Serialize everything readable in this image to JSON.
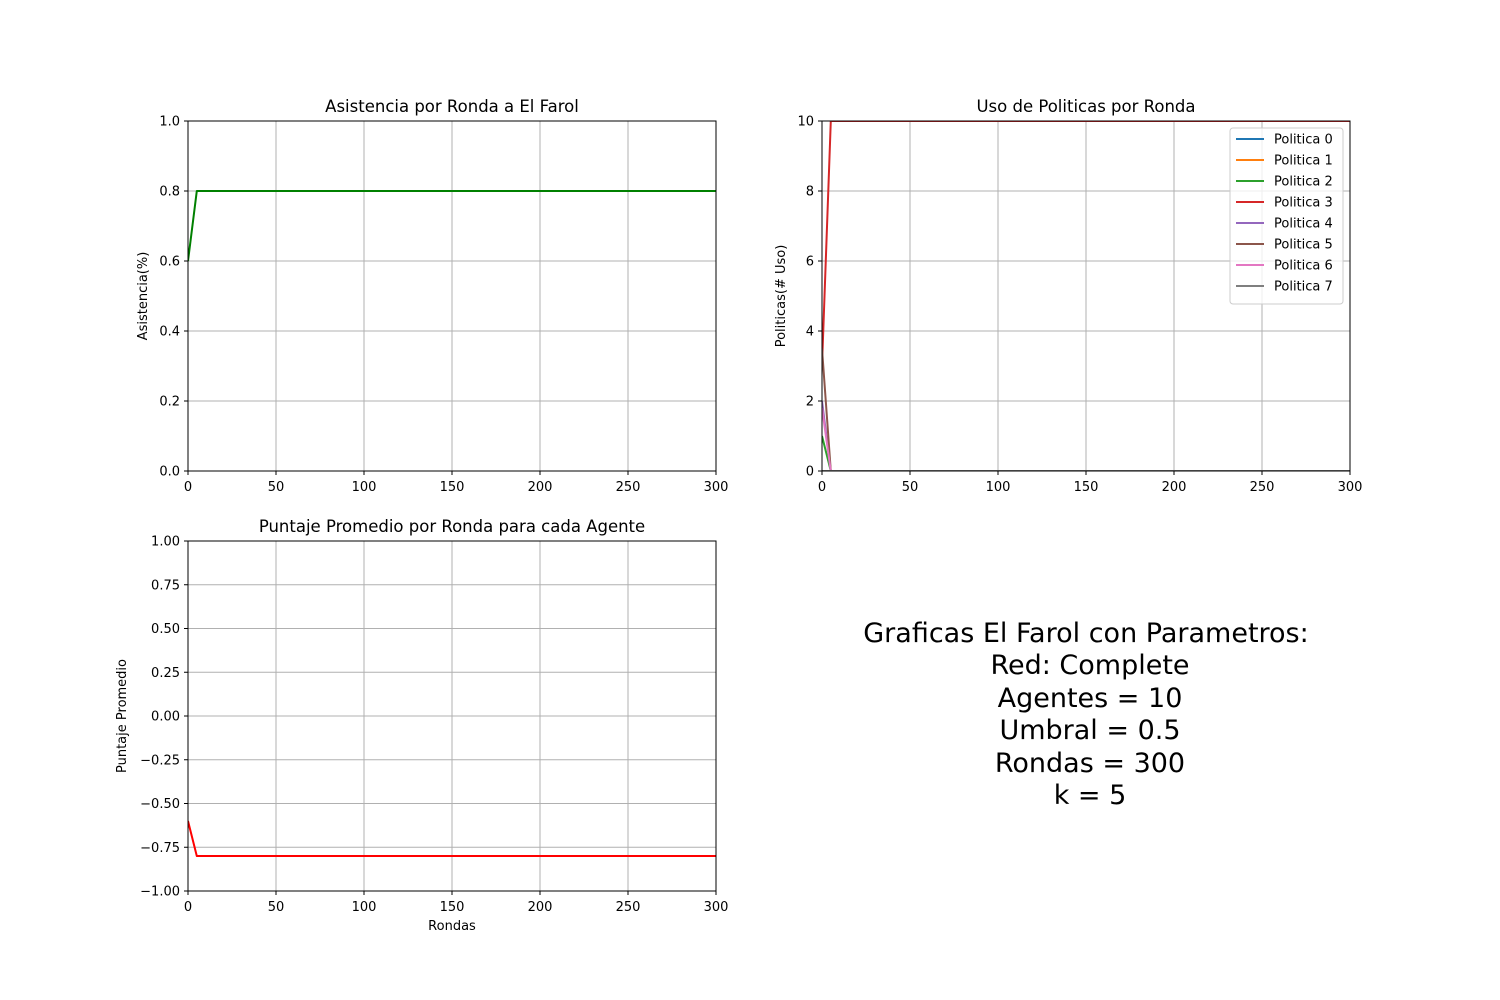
{
  "chart_data": [
    {
      "id": "attendance",
      "type": "line",
      "title": "Asistencia por Ronda a El Farol",
      "xlabel": "",
      "ylabel": "Asistencia(%)",
      "xlim": [
        0,
        300
      ],
      "ylim": [
        0,
        1
      ],
      "xticks": [
        0,
        50,
        100,
        150,
        200,
        250,
        300
      ],
      "yticks": [
        0.0,
        0.2,
        0.4,
        0.6,
        0.8,
        1.0
      ],
      "ytick_labels": [
        "0.0",
        "0.2",
        "0.4",
        "0.6",
        "0.8",
        "1.0"
      ],
      "grid": true,
      "series": [
        {
          "color": "#008000",
          "x": [
            0,
            5,
            300
          ],
          "y": [
            0.6,
            0.8,
            0.8
          ]
        }
      ]
    },
    {
      "id": "policies",
      "type": "line",
      "title": "Uso de Politicas por Ronda",
      "xlabel": "",
      "ylabel": "Politicas(# Uso)",
      "xlim": [
        0,
        300
      ],
      "ylim": [
        0,
        10
      ],
      "xticks": [
        0,
        50,
        100,
        150,
        200,
        250,
        300
      ],
      "yticks": [
        0,
        2,
        4,
        6,
        8,
        10
      ],
      "ytick_labels": [
        "0",
        "2",
        "4",
        "6",
        "8",
        "10"
      ],
      "grid": true,
      "legend": "top-right",
      "series": [
        {
          "name": "Politica 0",
          "color": "#1f77b4",
          "x": [
            0,
            5,
            300
          ],
          "y": [
            0,
            0,
            0
          ]
        },
        {
          "name": "Politica 1",
          "color": "#ff7f0e",
          "x": [
            0,
            5,
            300
          ],
          "y": [
            0,
            0,
            0
          ]
        },
        {
          "name": "Politica 2",
          "color": "#2ca02c",
          "x": [
            0,
            5,
            300
          ],
          "y": [
            1,
            0,
            0
          ]
        },
        {
          "name": "Politica 3",
          "color": "#d62728",
          "x": [
            0,
            5,
            300
          ],
          "y": [
            3,
            10,
            10
          ]
        },
        {
          "name": "Politica 4",
          "color": "#9467bd",
          "x": [
            0,
            5,
            300
          ],
          "y": [
            2,
            0,
            0
          ]
        },
        {
          "name": "Politica 5",
          "color": "#8c564b",
          "x": [
            0,
            5,
            300
          ],
          "y": [
            3.5,
            0,
            0
          ]
        },
        {
          "name": "Politica 6",
          "color": "#e377c2",
          "x": [
            0,
            5,
            300
          ],
          "y": [
            1.8,
            0,
            0
          ]
        },
        {
          "name": "Politica 7",
          "color": "#7f7f7f",
          "x": [
            0,
            5,
            300
          ],
          "y": [
            0,
            0,
            0
          ]
        }
      ]
    },
    {
      "id": "score",
      "type": "line",
      "title": "Puntaje Promedio por Ronda para cada Agente",
      "xlabel": "Rondas",
      "ylabel": "Puntaje Promedio",
      "xlim": [
        0,
        300
      ],
      "ylim": [
        -1,
        1
      ],
      "xticks": [
        0,
        50,
        100,
        150,
        200,
        250,
        300
      ],
      "yticks": [
        -1.0,
        -0.75,
        -0.5,
        -0.25,
        0.0,
        0.25,
        0.5,
        0.75,
        1.0
      ],
      "ytick_labels": [
        "−1.00",
        "−0.75",
        "−0.50",
        "−0.25",
        "0.00",
        "0.25",
        "0.50",
        "0.75",
        "1.00"
      ],
      "grid": true,
      "series": [
        {
          "color": "#ff0000",
          "x": [
            0,
            5,
            300
          ],
          "y": [
            -0.6,
            -0.8,
            -0.8
          ]
        }
      ]
    }
  ],
  "params": {
    "lines": [
      "Graficas El Farol con Parametros:",
      "Red: Complete",
      "Agentes = 10",
      "Umbral = 0.5",
      "Rondas = 300",
      "k = 5"
    ]
  }
}
